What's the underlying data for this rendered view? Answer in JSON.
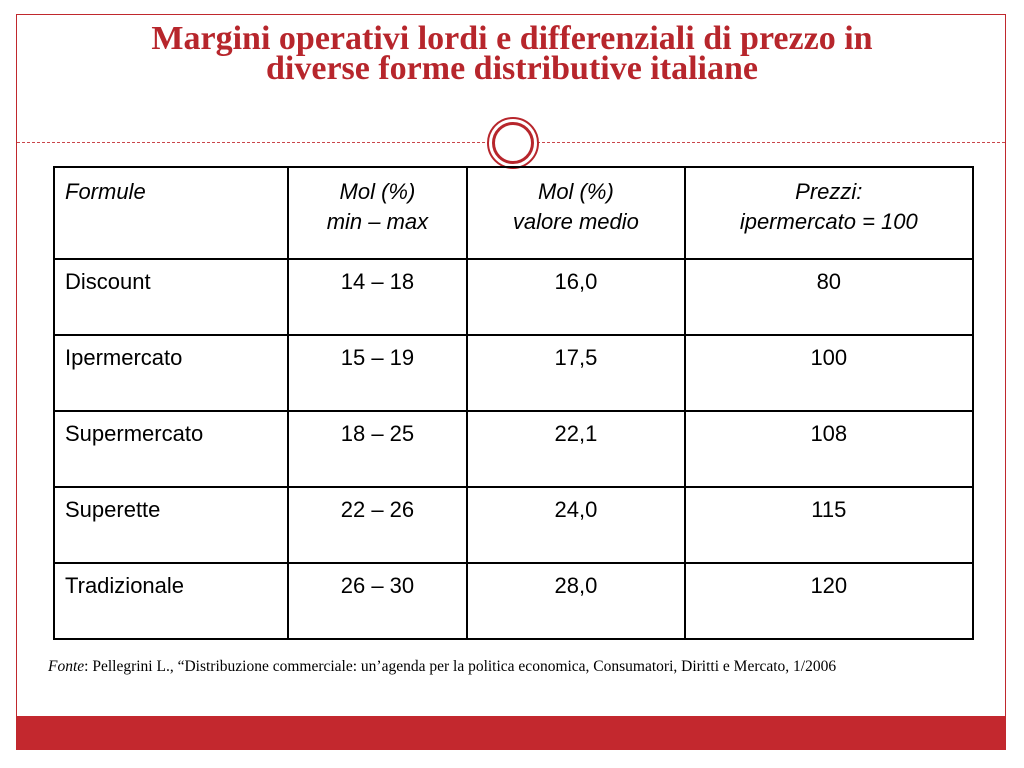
{
  "title": {
    "line1": "Margini operativi lordi e differenziali di prezzo in",
    "line2": "diverse forme distributive italiane"
  },
  "table": {
    "headers": [
      {
        "line1": "Formule",
        "line2": ""
      },
      {
        "line1": "Mol (%)",
        "line2": "min – max"
      },
      {
        "line1": "Mol (%)",
        "line2": "valore medio"
      },
      {
        "line1": "Prezzi:",
        "line2": "ipermercato = 100"
      }
    ],
    "rows": [
      {
        "formula": "Discount",
        "range": "14 – 18",
        "avg": "16,0",
        "price": "80"
      },
      {
        "formula": "Ipermercato",
        "range": "15 – 19",
        "avg": "17,5",
        "price": "100"
      },
      {
        "formula": "Supermercato",
        "range": "18 – 25",
        "avg": "22,1",
        "price": "108"
      },
      {
        "formula": "Superette",
        "range": "22 – 26",
        "avg": "24,0",
        "price": "115"
      },
      {
        "formula": "Tradizionale",
        "range": "26 – 30",
        "avg": "28,0",
        "price": "120"
      }
    ]
  },
  "source": {
    "label": "Fonte",
    "text": ": Pellegrini L., “Distribuzione commerciale: un’agenda per la politica economica, Consumatori, Diritti e Mercato, 1/2006"
  },
  "colors": {
    "accent": "#b7262c",
    "band": "#c3282e"
  }
}
